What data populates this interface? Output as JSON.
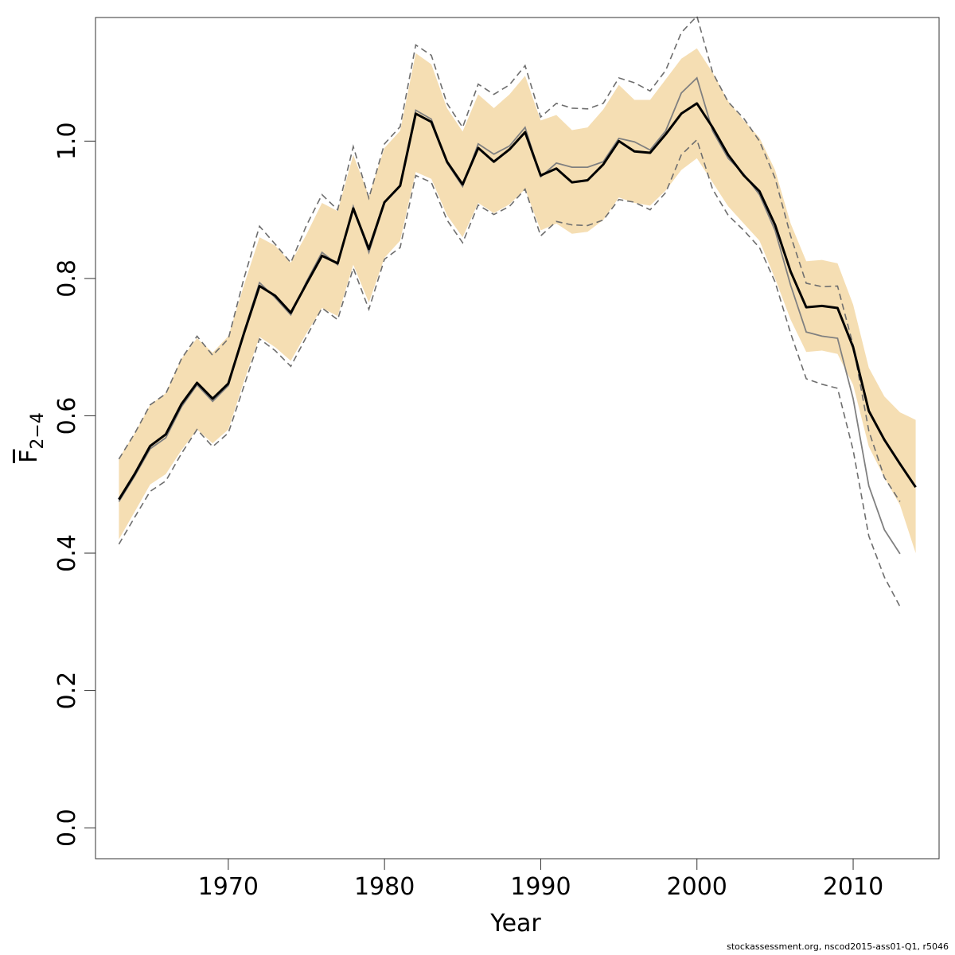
{
  "chart_data": {
    "type": "line",
    "xlabel": "Year",
    "ylabel_main": "F",
    "ylabel_sub": "2−4",
    "xlim": [
      1961.5,
      2015.5
    ],
    "ylim": [
      -0.045,
      1.18
    ],
    "x_ticks": [
      1970,
      1980,
      1990,
      2000,
      2010
    ],
    "x_tick_labels": [
      "1970",
      "1980",
      "1990",
      "2000",
      "2010"
    ],
    "y_ticks": [
      0.0,
      0.2,
      0.4,
      0.6,
      0.8,
      1.0
    ],
    "y_tick_labels": [
      "0.0",
      "0.2",
      "0.4",
      "0.6",
      "0.8",
      "1.0"
    ],
    "grid": false,
    "colors": {
      "band": "#f5deb3",
      "main": "#000000",
      "previous": "#808080",
      "previous_ci": "#6e6e6e"
    },
    "years": [
      1963,
      1964,
      1965,
      1966,
      1967,
      1968,
      1969,
      1970,
      1971,
      1972,
      1973,
      1974,
      1975,
      1976,
      1977,
      1978,
      1979,
      1980,
      1981,
      1982,
      1983,
      1984,
      1985,
      1986,
      1987,
      1988,
      1989,
      1990,
      1991,
      1992,
      1993,
      1994,
      1995,
      1996,
      1997,
      1998,
      1999,
      2000,
      2001,
      2002,
      2003,
      2004,
      2005,
      2006,
      2007,
      2008,
      2009,
      2010,
      2011,
      2012,
      2013,
      2014
    ],
    "series": [
      {
        "role": "estimate",
        "values": [
          0.478,
          0.515,
          0.556,
          0.573,
          0.617,
          0.648,
          0.625,
          0.647,
          0.72,
          0.789,
          0.775,
          0.75,
          0.792,
          0.833,
          0.822,
          0.902,
          0.843,
          0.911,
          0.935,
          1.04,
          1.028,
          0.97,
          0.937,
          0.99,
          0.97,
          0.988,
          1.013,
          0.95,
          0.96,
          0.94,
          0.943,
          0.966,
          1.0,
          0.985,
          0.983,
          1.01,
          1.04,
          1.055,
          1.02,
          0.98,
          0.95,
          0.927,
          0.878,
          0.81,
          0.758,
          0.76,
          0.757,
          0.7,
          0.607,
          0.565,
          0.53,
          0.496
        ],
        "lower": [
          0.42,
          0.46,
          0.5,
          0.515,
          0.55,
          0.58,
          0.56,
          0.58,
          0.65,
          0.715,
          0.7,
          0.68,
          0.72,
          0.757,
          0.745,
          0.82,
          0.765,
          0.83,
          0.855,
          0.955,
          0.945,
          0.892,
          0.86,
          0.91,
          0.895,
          0.908,
          0.93,
          0.87,
          0.88,
          0.865,
          0.868,
          0.885,
          0.918,
          0.91,
          0.906,
          0.928,
          0.958,
          0.975,
          0.94,
          0.905,
          0.88,
          0.855,
          0.8,
          0.74,
          0.693,
          0.695,
          0.69,
          0.645,
          0.555,
          0.51,
          0.47,
          0.4
        ],
        "upper": [
          0.538,
          0.574,
          0.616,
          0.633,
          0.683,
          0.713,
          0.692,
          0.716,
          0.79,
          0.86,
          0.848,
          0.823,
          0.864,
          0.91,
          0.898,
          0.98,
          0.92,
          0.99,
          1.015,
          1.128,
          1.112,
          1.048,
          1.014,
          1.068,
          1.048,
          1.068,
          1.095,
          1.03,
          1.038,
          1.016,
          1.02,
          1.046,
          1.082,
          1.06,
          1.06,
          1.09,
          1.12,
          1.135,
          1.1,
          1.058,
          1.03,
          1.005,
          0.958,
          0.88,
          0.825,
          0.827,
          0.822,
          0.762,
          0.67,
          0.628,
          0.605,
          0.594
        ]
      },
      {
        "role": "previous-estimate",
        "years": [
          1963,
          1964,
          1965,
          1966,
          1967,
          1968,
          1969,
          1970,
          1971,
          1972,
          1973,
          1974,
          1975,
          1976,
          1977,
          1978,
          1979,
          1980,
          1981,
          1982,
          1983,
          1984,
          1985,
          1986,
          1987,
          1988,
          1989,
          1990,
          1991,
          1992,
          1993,
          1994,
          1995,
          1996,
          1997,
          1998,
          1999,
          2000,
          2001,
          2002,
          2003,
          2004,
          2005,
          2006,
          2007,
          2008,
          2009,
          2010,
          2011,
          2012,
          2013
        ],
        "values": [
          0.475,
          0.512,
          0.552,
          0.568,
          0.613,
          0.645,
          0.621,
          0.644,
          0.722,
          0.794,
          0.772,
          0.747,
          0.795,
          0.838,
          0.82,
          0.905,
          0.838,
          0.91,
          0.934,
          1.045,
          1.032,
          0.968,
          0.934,
          0.996,
          0.981,
          0.993,
          1.02,
          0.948,
          0.968,
          0.962,
          0.962,
          0.97,
          1.004,
          0.999,
          0.987,
          1.015,
          1.07,
          1.092,
          1.015,
          0.975,
          0.952,
          0.922,
          0.87,
          0.79,
          0.722,
          0.716,
          0.713,
          0.625,
          0.498,
          0.434,
          0.399
        ],
        "lower": [
          0.413,
          0.452,
          0.49,
          0.505,
          0.545,
          0.58,
          0.555,
          0.575,
          0.643,
          0.712,
          0.695,
          0.672,
          0.715,
          0.757,
          0.74,
          0.815,
          0.755,
          0.828,
          0.845,
          0.95,
          0.94,
          0.885,
          0.852,
          0.907,
          0.893,
          0.905,
          0.93,
          0.862,
          0.883,
          0.878,
          0.877,
          0.885,
          0.915,
          0.911,
          0.9,
          0.925,
          0.98,
          1.002,
          0.93,
          0.892,
          0.87,
          0.845,
          0.795,
          0.72,
          0.654,
          0.646,
          0.64,
          0.55,
          0.425,
          0.365,
          0.322
        ],
        "upper": [
          0.537,
          0.574,
          0.616,
          0.632,
          0.683,
          0.716,
          0.688,
          0.712,
          0.8,
          0.876,
          0.85,
          0.823,
          0.877,
          0.922,
          0.9,
          0.992,
          0.917,
          0.996,
          1.021,
          1.14,
          1.125,
          1.055,
          1.02,
          1.083,
          1.068,
          1.082,
          1.11,
          1.035,
          1.055,
          1.048,
          1.047,
          1.055,
          1.092,
          1.085,
          1.073,
          1.103,
          1.158,
          1.182,
          1.1,
          1.057,
          1.033,
          1.0,
          0.946,
          0.862,
          0.793,
          0.788,
          0.789,
          0.703,
          0.578,
          0.51,
          0.475
        ]
      }
    ]
  },
  "footer": "stockassessment.org, nscod2015-ass01-Q1, r5046"
}
